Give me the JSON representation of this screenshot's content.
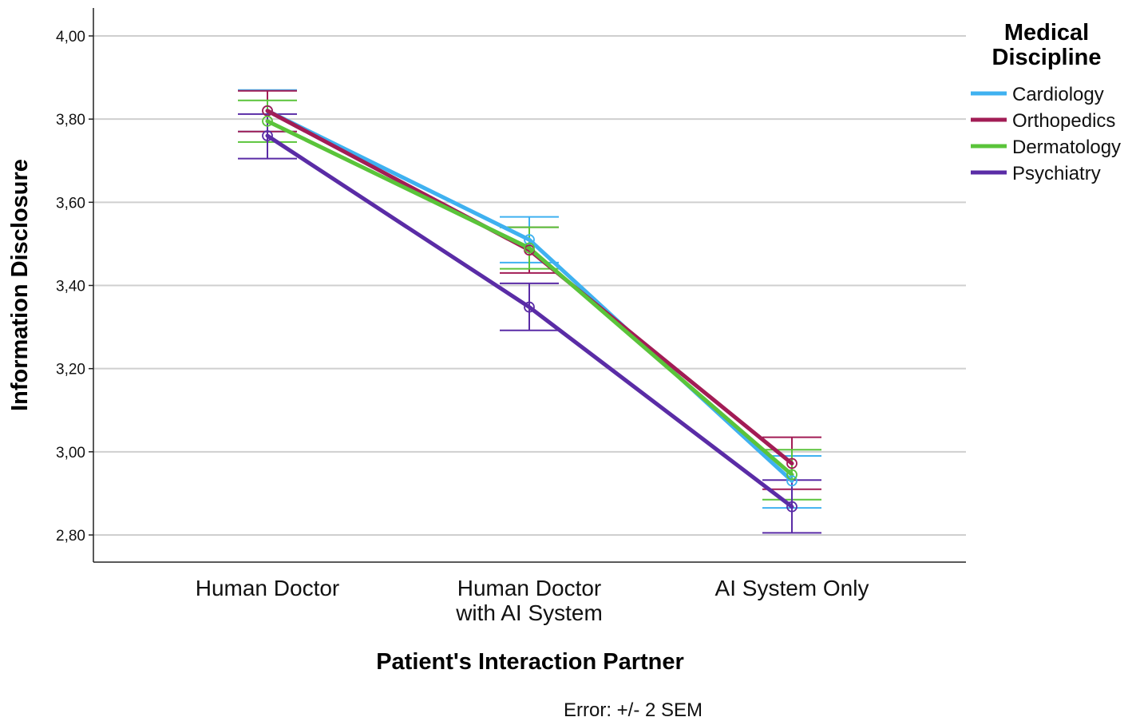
{
  "chart_data": {
    "type": "line",
    "xlabel": "Patient's Interaction Partner",
    "ylabel": "Information Disclosure",
    "categories": [
      [
        "Human Doctor"
      ],
      [
        "Human Doctor",
        "with AI System"
      ],
      [
        "AI System Only"
      ]
    ],
    "ylim": [
      2.74,
      4.07
    ],
    "yticks": [
      2.8,
      3.0,
      3.2,
      3.4,
      3.6,
      3.8,
      4.0
    ],
    "ytick_labels": [
      "2,80",
      "3,00",
      "3,20",
      "3,40",
      "3,60",
      "3,80",
      "4,00"
    ],
    "grid": true,
    "legend": {
      "title": [
        "Medical",
        "Discipline"
      ],
      "placement": "top-right"
    },
    "series": [
      {
        "name": "Cardiology",
        "color": "#3FB1F0",
        "values": [
          3.82,
          3.51,
          2.93
        ],
        "error_low": [
          3.77,
          3.455,
          2.865
        ],
        "error_high": [
          3.87,
          3.565,
          2.99
        ]
      },
      {
        "name": "Orthopedics",
        "color": "#A21C55",
        "values": [
          3.82,
          3.485,
          2.972
        ],
        "error_low": [
          3.77,
          3.43,
          2.91
        ],
        "error_high": [
          3.868,
          3.54,
          3.035
        ]
      },
      {
        "name": "Dermatology",
        "color": "#5AC43A",
        "values": [
          3.795,
          3.49,
          2.945
        ],
        "error_low": [
          3.745,
          3.44,
          2.885
        ],
        "error_high": [
          3.845,
          3.54,
          3.005
        ]
      },
      {
        "name": "Psychiatry",
        "color": "#5A2CA6",
        "values": [
          3.76,
          3.348,
          2.868
        ],
        "error_low": [
          3.705,
          3.292,
          2.805
        ],
        "error_high": [
          3.812,
          3.405,
          2.932
        ]
      }
    ],
    "annotation": "Error: +/- 2 SEM"
  }
}
